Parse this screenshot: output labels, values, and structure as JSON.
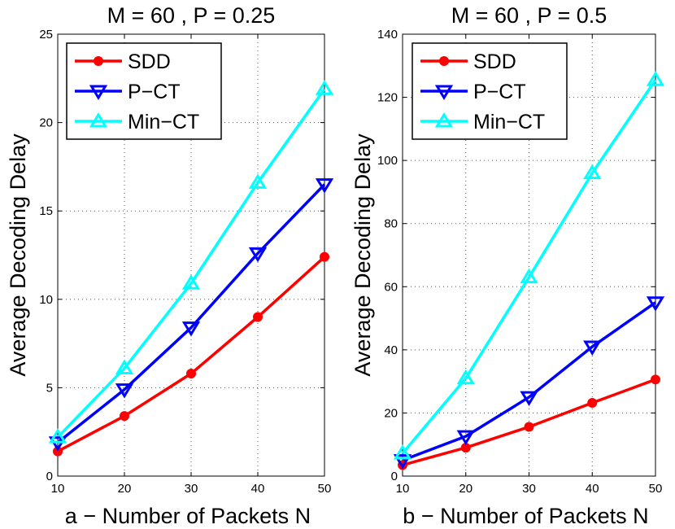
{
  "chart_data": [
    {
      "type": "line",
      "title": "M = 60 , P = 0.25",
      "xlabel": "a − Number of Packets N",
      "ylabel": "Average Decoding Delay",
      "x": [
        10,
        20,
        30,
        40,
        50
      ],
      "xlim": [
        10,
        50
      ],
      "ylim": [
        0,
        25
      ],
      "xticks": [
        10,
        20,
        30,
        40,
        50
      ],
      "yticks": [
        0,
        5,
        10,
        15,
        20,
        25
      ],
      "grid": true,
      "legend_position": "top-left",
      "series": [
        {
          "name": "SDD",
          "color": "#ff0000",
          "marker": "circle",
          "values": [
            1.4,
            3.4,
            5.8,
            9.0,
            12.4
          ]
        },
        {
          "name": "P−CT",
          "color": "#0000ff",
          "marker": "triangle-down",
          "values": [
            1.9,
            4.9,
            8.4,
            12.6,
            16.5
          ]
        },
        {
          "name": "Min−CT",
          "color": "#00ffff",
          "marker": "triangle-up",
          "values": [
            2.2,
            6.1,
            10.9,
            16.6,
            21.9
          ]
        }
      ]
    },
    {
      "type": "line",
      "title": "M = 60 , P = 0.5",
      "xlabel": "b − Number of Packets N",
      "ylabel": "Average Decoding Delay",
      "x": [
        10,
        20,
        30,
        40,
        50
      ],
      "xlim": [
        10,
        50
      ],
      "ylim": [
        0,
        140
      ],
      "xticks": [
        10,
        20,
        30,
        40,
        50
      ],
      "yticks": [
        0,
        20,
        40,
        60,
        80,
        100,
        120,
        140
      ],
      "grid": true,
      "legend_position": "top-left",
      "series": [
        {
          "name": "SDD",
          "color": "#ff0000",
          "marker": "circle",
          "values": [
            3.5,
            9.0,
            15.6,
            23.2,
            30.6
          ]
        },
        {
          "name": "P−CT",
          "color": "#0000ff",
          "marker": "triangle-down",
          "values": [
            5.0,
            12.6,
            25.0,
            41.0,
            55.0
          ]
        },
        {
          "name": "Min−CT",
          "color": "#00ffff",
          "marker": "triangle-up",
          "values": [
            7.2,
            31.0,
            63.0,
            96.0,
            125.5
          ]
        }
      ]
    }
  ]
}
